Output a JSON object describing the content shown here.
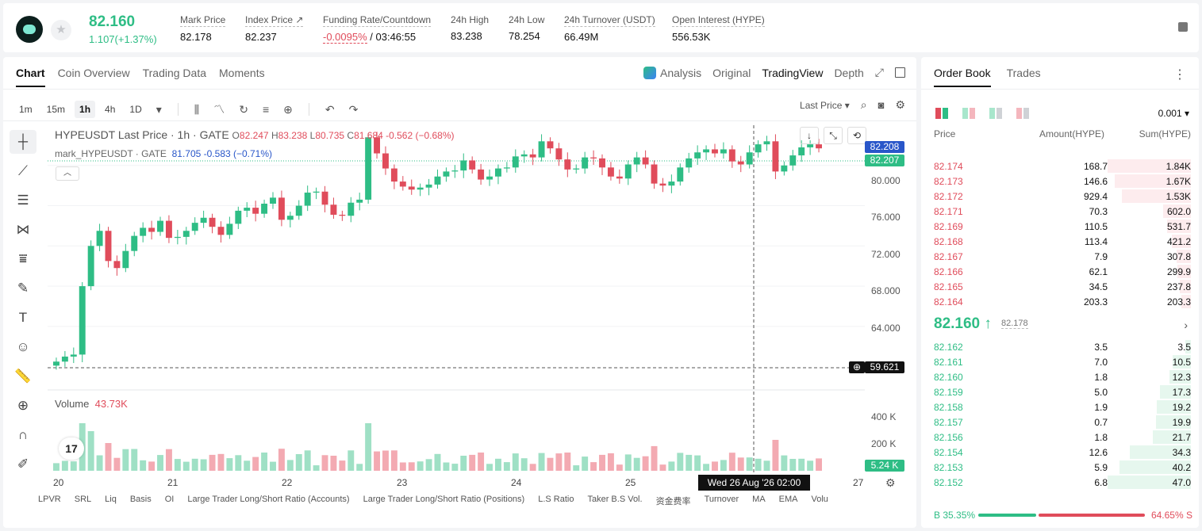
{
  "header": {
    "last_price": "82.160",
    "change": "1.107(+1.37%)",
    "stats": [
      {
        "label": "Mark Price",
        "value": "82.178"
      },
      {
        "label": "Index Price ↗",
        "value": "82.237"
      },
      {
        "label": "Funding Rate/Countdown",
        "value_rate": "-0.0095%",
        "value_countdown": " / 03:46:55"
      },
      {
        "label": "24h High",
        "value": "83.238"
      },
      {
        "label": "24h Low",
        "value": "78.254"
      },
      {
        "label": "24h Turnover (USDT)",
        "value": "66.49M"
      },
      {
        "label": "Open Interest (HYPE)",
        "value": "556.53K"
      }
    ]
  },
  "chart_tabs": [
    "Chart",
    "Coin Overview",
    "Trading Data",
    "Moments"
  ],
  "view_tabs": [
    "Analysis",
    "Original",
    "TradingView",
    "Depth"
  ],
  "toolbar": {
    "intervals": [
      "1m",
      "15m",
      "1h",
      "4h",
      "1D"
    ],
    "last_price_select": "Last Price"
  },
  "legend": {
    "title": "HYPEUSDT Last Price · 1h · GATE",
    "o_label": "O",
    "o": "82.247",
    "h_label": "H",
    "h": "83.238",
    "l_label": "L",
    "l": "80.735",
    "c_label": "C",
    "c": "81.684",
    "chg": "-0.562 (−0.68%)",
    "mark_label": "mark_HYPEUSDT · GATE",
    "mark_value": "81.705",
    "mark_chg": "-0.583 (−0.71%)"
  },
  "price_labels": {
    "p1": "82.208",
    "p2": "82.207",
    "p3": "59.621"
  },
  "y_ticks": [
    "80.000",
    "76.000",
    "72.000",
    "68.000",
    "64.000"
  ],
  "volume": {
    "label": "Volume",
    "value": "43.73K",
    "ticks": [
      "400 K",
      "200 K"
    ],
    "current": "5.24 K"
  },
  "x_ticks": [
    "20",
    "21",
    "22",
    "23",
    "24",
    "25",
    "27"
  ],
  "crosshair_label": "Wed 26 Aug '26   02:00",
  "indicators": [
    "LPVR",
    "SRL",
    "Liq",
    "Basis",
    "OI",
    "Large Trader Long/Short Ratio (Accounts)",
    "Large Trader Long/Short Ratio (Positions)",
    "L.S Ratio",
    "Taker B.S Vol.",
    "资金费率",
    "Turnover",
    "MA",
    "EMA",
    "Volu"
  ],
  "chart_data": {
    "type": "candlestick",
    "ylim": [
      58,
      84
    ],
    "close_series": [
      60.5,
      61.0,
      61.2,
      68,
      72,
      73.5,
      70.5,
      69.8,
      71.5,
      73,
      73.8,
      73.4,
      74.5,
      72.8,
      72.9,
      73.5,
      74.3,
      74.8,
      73.9,
      73.1,
      74.2,
      75.5,
      75.8,
      75.2,
      76.2,
      76.8,
      74.6,
      75.0,
      76.0,
      77.3,
      77.4,
      76.1,
      75.1,
      75.0,
      76.3,
      76.6,
      82.8,
      81.2,
      79.7,
      78.4,
      77.9,
      77.6,
      77.8,
      78.1,
      78.9,
      79.4,
      79.5,
      80.5,
      79.6,
      78.6,
      78.9,
      79.7,
      79.8,
      80.9,
      81.1,
      80.8,
      82.4,
      81.7,
      80.6,
      79.6,
      79.7,
      80.8,
      80.7,
      79.8,
      78.9,
      78.7,
      80.1,
      80.8,
      80.1,
      78.2,
      78.0,
      78.4,
      79.8,
      80.7,
      81.3,
      81.6,
      81.2,
      81.6,
      80.4,
      80.1,
      81.3,
      82.1,
      82.4,
      79.4,
      80.0,
      81.0,
      81.8,
      82.1,
      81.7
    ]
  },
  "order_book": {
    "tabs": [
      "Order Book",
      "Trades"
    ],
    "precision": "0.001",
    "headers": [
      "Price",
      "Amount(HYPE)",
      "Sum(HYPE)"
    ],
    "asks": [
      {
        "price": "82.174",
        "amount": "168.7",
        "sum": "1.84K",
        "depth": 1.0
      },
      {
        "price": "82.173",
        "amount": "146.6",
        "sum": "1.67K",
        "depth": 0.91
      },
      {
        "price": "82.172",
        "amount": "929.4",
        "sum": "1.53K",
        "depth": 0.83
      },
      {
        "price": "82.171",
        "amount": "70.3",
        "sum": "602.0",
        "depth": 0.33
      },
      {
        "price": "82.169",
        "amount": "110.5",
        "sum": "531.7",
        "depth": 0.29
      },
      {
        "price": "82.168",
        "amount": "113.4",
        "sum": "421.2",
        "depth": 0.23
      },
      {
        "price": "82.167",
        "amount": "7.9",
        "sum": "307.8",
        "depth": 0.17
      },
      {
        "price": "82.166",
        "amount": "62.1",
        "sum": "299.9",
        "depth": 0.16
      },
      {
        "price": "82.165",
        "amount": "34.5",
        "sum": "237.8",
        "depth": 0.13
      },
      {
        "price": "82.164",
        "amount": "203.3",
        "sum": "203.3",
        "depth": 0.11
      }
    ],
    "mid_price": "82.160 ↑",
    "mark_price": "82.178",
    "bids": [
      {
        "price": "82.162",
        "amount": "3.5",
        "sum": "3.5",
        "depth": 0.07
      },
      {
        "price": "82.161",
        "amount": "7.0",
        "sum": "10.5",
        "depth": 0.22
      },
      {
        "price": "82.160",
        "amount": "1.8",
        "sum": "12.3",
        "depth": 0.26
      },
      {
        "price": "82.159",
        "amount": "5.0",
        "sum": "17.3",
        "depth": 0.37
      },
      {
        "price": "82.158",
        "amount": "1.9",
        "sum": "19.2",
        "depth": 0.41
      },
      {
        "price": "82.157",
        "amount": "0.7",
        "sum": "19.9",
        "depth": 0.42
      },
      {
        "price": "82.156",
        "amount": "1.8",
        "sum": "21.7",
        "depth": 0.46
      },
      {
        "price": "82.154",
        "amount": "12.6",
        "sum": "34.3",
        "depth": 0.73
      },
      {
        "price": "82.153",
        "amount": "5.9",
        "sum": "40.2",
        "depth": 0.86
      },
      {
        "price": "82.152",
        "amount": "6.8",
        "sum": "47.0",
        "depth": 1.0
      }
    ],
    "buy_ratio": "B 35.35%",
    "sell_ratio": "64.65% S"
  },
  "colors": {
    "up": "#2ebd85",
    "down": "#e04c5b"
  }
}
